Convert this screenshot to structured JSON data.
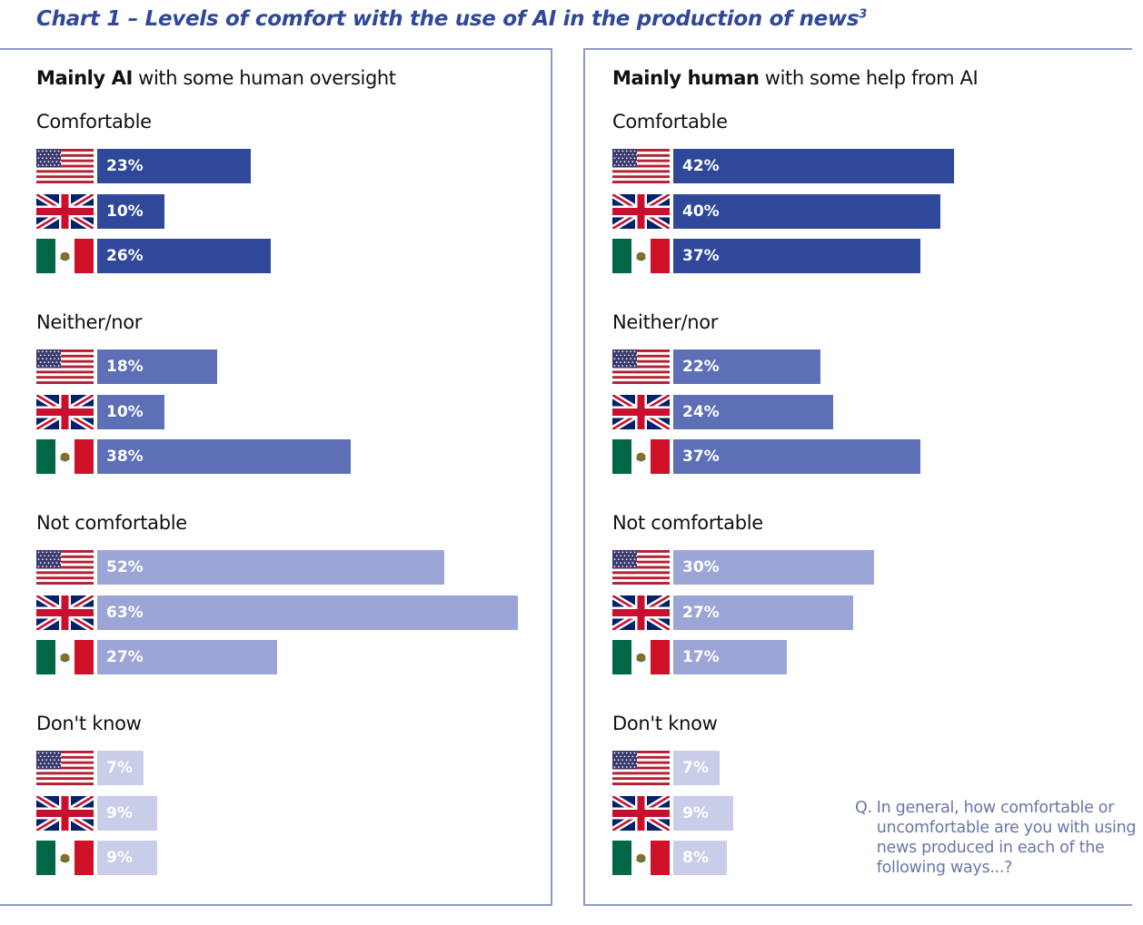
{
  "title": "Chart 1 – Levels of comfort with the use of AI in the production of news",
  "title_footnote": "3",
  "question_prefix": "Q.",
  "question_text": "In general, how comfortable or uncomfortable are you with using news produced in each of the following ways...?",
  "colors": {
    "comfortable": "#2f4899",
    "neither": "#5d6fb7",
    "not_comfortable": "#9ca6d6",
    "dont_know": "#c9cdea",
    "accent": "#2f4899"
  },
  "countries": [
    {
      "name": "United States",
      "icon": "us-flag-icon"
    },
    {
      "name": "United Kingdom",
      "icon": "uk-flag-icon"
    },
    {
      "name": "Mexico",
      "icon": "mexico-flag-icon"
    }
  ],
  "chart_data": [
    {
      "type": "bar",
      "orientation": "horizontal",
      "title_bold": "Mainly AI",
      "title_rest": " with some human oversight",
      "categories": [
        "Comfortable",
        "Neither/nor",
        "Not comfortable",
        "Don't know"
      ],
      "series": [
        {
          "country": "United States",
          "values": [
            23,
            18,
            52,
            7
          ],
          "labels": [
            "23%",
            "18%",
            "52%",
            "7%"
          ]
        },
        {
          "country": "United Kingdom",
          "values": [
            10,
            10,
            63,
            9
          ],
          "labels": [
            "10%",
            "10%",
            "63%",
            "9%"
          ]
        },
        {
          "country": "Mexico",
          "values": [
            26,
            38,
            27,
            9
          ],
          "labels": [
            "26%",
            "38%",
            "27%",
            "9%"
          ]
        }
      ]
    },
    {
      "type": "bar",
      "orientation": "horizontal",
      "title_bold": "Mainly human",
      "title_rest": " with some help from AI",
      "categories": [
        "Comfortable",
        "Neither/nor",
        "Not comfortable",
        "Don't know"
      ],
      "series": [
        {
          "country": "United States",
          "values": [
            42,
            22,
            30,
            7
          ],
          "labels": [
            "42%",
            "22%",
            "30%",
            "7%"
          ]
        },
        {
          "country": "United Kingdom",
          "values": [
            40,
            24,
            27,
            9
          ],
          "labels": [
            "40%",
            "24%",
            "27%",
            "9%"
          ]
        },
        {
          "country": "Mexico",
          "values": [
            37,
            37,
            17,
            8
          ],
          "labels": [
            "37%",
            "37%",
            "17%",
            "8%"
          ]
        }
      ]
    }
  ]
}
